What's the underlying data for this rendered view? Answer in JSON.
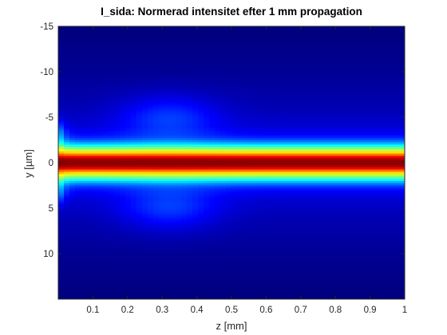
{
  "chart_data": {
    "type": "heatmap",
    "title": "I_sida: Normerad intensitet efter 1 mm propagation",
    "xlabel": "z [mm]",
    "ylabel": "y [µm]",
    "xlim": [
      0,
      1
    ],
    "ylim": [
      -15,
      15
    ],
    "y_reversed": true,
    "x_ticks": [
      0.1,
      0.2,
      0.3,
      0.4,
      0.5,
      0.6,
      0.7,
      0.8,
      0.9,
      1
    ],
    "x_tick_labels": [
      "0.1",
      "0.2",
      "0.3",
      "0.4",
      "0.5",
      "0.6",
      "0.7",
      "0.8",
      "0.9",
      "1"
    ],
    "y_ticks": [
      -15,
      -10,
      -5,
      0,
      5,
      10
    ],
    "y_tick_labels": [
      "-15",
      "-10",
      "-5",
      "0",
      "5",
      "10"
    ],
    "colormap": "jet",
    "intensity_range": [
      0,
      1
    ],
    "beam_center_y": 0,
    "beam_profile": [
      {
        "y": 0,
        "intensity": 1.0
      },
      {
        "y": 0.5,
        "intensity": 0.95
      },
      {
        "y": 1.0,
        "intensity": 0.7
      },
      {
        "y": 1.5,
        "intensity": 0.52
      },
      {
        "y": 2.0,
        "intensity": 0.34
      },
      {
        "y": 2.5,
        "intensity": 0.2
      },
      {
        "y": 3.0,
        "intensity": 0.13
      },
      {
        "y": 4.0,
        "intensity": 0.08
      },
      {
        "y": 6.0,
        "intensity": 0.05
      },
      {
        "y": 10.0,
        "intensity": 0.02
      },
      {
        "y": 15.0,
        "intensity": 0.0
      }
    ],
    "grid": false,
    "colors": {
      "background": "#ffffff",
      "axis": "#262626"
    }
  }
}
